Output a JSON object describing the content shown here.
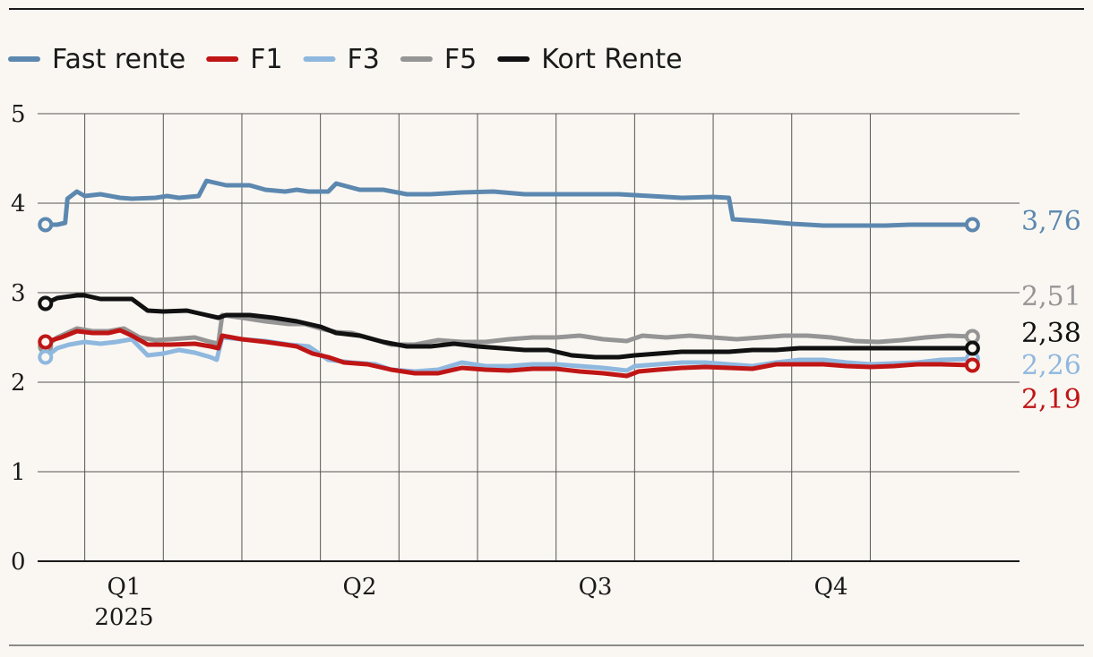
{
  "colors": {
    "background": "#faf7f2",
    "grid": "#555555",
    "axis": "#1a1a1a",
    "fast_rente": "#5c88b0",
    "f1": "#c01515",
    "f3": "#8fb8df",
    "f5": "#959595",
    "kort_rente": "#111111"
  },
  "chart_data": {
    "type": "line",
    "x_unit": "months of 2025",
    "xlim": [
      -0.6,
      11.9
    ],
    "ylim": [
      0,
      5
    ],
    "yticks": [
      "0",
      "1",
      "2",
      "3",
      "4",
      "5"
    ],
    "xticks": [
      {
        "at": 0,
        "label": "Q1",
        "sublabel": "2025"
      },
      {
        "at": 3,
        "label": "Q2",
        "sublabel": ""
      },
      {
        "at": 6,
        "label": "Q3",
        "sublabel": ""
      },
      {
        "at": 9,
        "label": "Q4",
        "sublabel": ""
      }
    ],
    "grid_x": [
      0,
      1,
      2,
      3,
      4,
      5,
      6,
      7,
      8,
      9,
      10
    ],
    "grid": true,
    "legend_position": "top-left",
    "series": [
      {
        "name": "Fast rente",
        "color_key": "fast_rente",
        "end_label": "3,76",
        "points": [
          [
            -0.5,
            3.76
          ],
          [
            -0.35,
            3.76
          ],
          [
            -0.25,
            3.78
          ],
          [
            -0.22,
            4.05
          ],
          [
            -0.1,
            4.13
          ],
          [
            0,
            4.08
          ],
          [
            0.2,
            4.1
          ],
          [
            0.45,
            4.06
          ],
          [
            0.6,
            4.05
          ],
          [
            0.9,
            4.06
          ],
          [
            1.05,
            4.08
          ],
          [
            1.2,
            4.06
          ],
          [
            1.45,
            4.08
          ],
          [
            1.55,
            4.25
          ],
          [
            1.8,
            4.2
          ],
          [
            2.1,
            4.2
          ],
          [
            2.3,
            4.15
          ],
          [
            2.55,
            4.13
          ],
          [
            2.7,
            4.15
          ],
          [
            2.85,
            4.13
          ],
          [
            3.1,
            4.13
          ],
          [
            3.2,
            4.22
          ],
          [
            3.5,
            4.15
          ],
          [
            3.8,
            4.15
          ],
          [
            4.1,
            4.1
          ],
          [
            4.4,
            4.1
          ],
          [
            4.8,
            4.12
          ],
          [
            5.2,
            4.13
          ],
          [
            5.6,
            4.1
          ],
          [
            6,
            4.1
          ],
          [
            6.4,
            4.1
          ],
          [
            6.8,
            4.1
          ],
          [
            7.2,
            4.08
          ],
          [
            7.6,
            4.06
          ],
          [
            8,
            4.07
          ],
          [
            8.2,
            4.06
          ],
          [
            8.25,
            3.82
          ],
          [
            8.6,
            3.8
          ],
          [
            9,
            3.77
          ],
          [
            9.4,
            3.75
          ],
          [
            9.8,
            3.75
          ],
          [
            10.2,
            3.75
          ],
          [
            10.5,
            3.76
          ],
          [
            11.3,
            3.76
          ]
        ]
      },
      {
        "name": "F1",
        "color_key": "f1",
        "end_label": "2,19",
        "points": [
          [
            -0.5,
            2.45
          ],
          [
            -0.3,
            2.5
          ],
          [
            -0.1,
            2.57
          ],
          [
            0.1,
            2.55
          ],
          [
            0.3,
            2.55
          ],
          [
            0.45,
            2.58
          ],
          [
            0.6,
            2.52
          ],
          [
            0.8,
            2.42
          ],
          [
            1.1,
            2.42
          ],
          [
            1.4,
            2.43
          ],
          [
            1.6,
            2.4
          ],
          [
            1.7,
            2.38
          ],
          [
            1.75,
            2.52
          ],
          [
            2.0,
            2.48
          ],
          [
            2.3,
            2.45
          ],
          [
            2.55,
            2.42
          ],
          [
            2.7,
            2.4
          ],
          [
            2.9,
            2.32
          ],
          [
            3.1,
            2.28
          ],
          [
            3.3,
            2.22
          ],
          [
            3.6,
            2.2
          ],
          [
            3.9,
            2.14
          ],
          [
            4.2,
            2.1
          ],
          [
            4.5,
            2.1
          ],
          [
            4.8,
            2.16
          ],
          [
            5.1,
            2.14
          ],
          [
            5.4,
            2.13
          ],
          [
            5.7,
            2.15
          ],
          [
            6.0,
            2.15
          ],
          [
            6.3,
            2.12
          ],
          [
            6.6,
            2.1
          ],
          [
            6.9,
            2.07
          ],
          [
            7.05,
            2.12
          ],
          [
            7.3,
            2.14
          ],
          [
            7.6,
            2.16
          ],
          [
            7.9,
            2.17
          ],
          [
            8.2,
            2.16
          ],
          [
            8.5,
            2.15
          ],
          [
            8.8,
            2.2
          ],
          [
            9.1,
            2.2
          ],
          [
            9.4,
            2.2
          ],
          [
            9.7,
            2.18
          ],
          [
            10.0,
            2.17
          ],
          [
            10.3,
            2.18
          ],
          [
            10.6,
            2.2
          ],
          [
            10.9,
            2.2
          ],
          [
            11.3,
            2.19
          ]
        ]
      },
      {
        "name": "F3",
        "color_key": "f3",
        "end_label": "2,26",
        "points": [
          [
            -0.5,
            2.28
          ],
          [
            -0.35,
            2.38
          ],
          [
            -0.2,
            2.42
          ],
          [
            0,
            2.45
          ],
          [
            0.2,
            2.43
          ],
          [
            0.4,
            2.45
          ],
          [
            0.6,
            2.48
          ],
          [
            0.8,
            2.3
          ],
          [
            1.0,
            2.32
          ],
          [
            1.2,
            2.36
          ],
          [
            1.4,
            2.33
          ],
          [
            1.6,
            2.28
          ],
          [
            1.68,
            2.25
          ],
          [
            1.75,
            2.5
          ],
          [
            2.0,
            2.48
          ],
          [
            2.3,
            2.46
          ],
          [
            2.6,
            2.42
          ],
          [
            2.85,
            2.4
          ],
          [
            3.1,
            2.25
          ],
          [
            3.4,
            2.22
          ],
          [
            3.7,
            2.2
          ],
          [
            3.9,
            2.14
          ],
          [
            4.2,
            2.12
          ],
          [
            4.5,
            2.14
          ],
          [
            4.8,
            2.22
          ],
          [
            5.1,
            2.18
          ],
          [
            5.4,
            2.18
          ],
          [
            5.7,
            2.2
          ],
          [
            6.0,
            2.2
          ],
          [
            6.3,
            2.18
          ],
          [
            6.6,
            2.16
          ],
          [
            6.9,
            2.13
          ],
          [
            7.0,
            2.18
          ],
          [
            7.3,
            2.2
          ],
          [
            7.6,
            2.22
          ],
          [
            7.9,
            2.22
          ],
          [
            8.2,
            2.2
          ],
          [
            8.5,
            2.18
          ],
          [
            8.8,
            2.22
          ],
          [
            9.1,
            2.25
          ],
          [
            9.4,
            2.25
          ],
          [
            9.7,
            2.22
          ],
          [
            10.0,
            2.2
          ],
          [
            10.3,
            2.21
          ],
          [
            10.6,
            2.22
          ],
          [
            10.9,
            2.25
          ],
          [
            11.3,
            2.26
          ]
        ]
      },
      {
        "name": "F5",
        "color_key": "f5",
        "end_label": "2,51",
        "points": [
          [
            -0.5,
            2.4
          ],
          [
            -0.35,
            2.5
          ],
          [
            -0.1,
            2.6
          ],
          [
            0.1,
            2.57
          ],
          [
            0.3,
            2.57
          ],
          [
            0.5,
            2.6
          ],
          [
            0.7,
            2.5
          ],
          [
            0.9,
            2.47
          ],
          [
            1.1,
            2.48
          ],
          [
            1.4,
            2.5
          ],
          [
            1.6,
            2.45
          ],
          [
            1.7,
            2.43
          ],
          [
            1.75,
            2.75
          ],
          [
            2.0,
            2.72
          ],
          [
            2.3,
            2.68
          ],
          [
            2.6,
            2.65
          ],
          [
            2.8,
            2.65
          ],
          [
            3.0,
            2.6
          ],
          [
            3.2,
            2.56
          ],
          [
            3.4,
            2.55
          ],
          [
            3.6,
            2.5
          ],
          [
            3.9,
            2.42
          ],
          [
            4.2,
            2.42
          ],
          [
            4.5,
            2.47
          ],
          [
            4.8,
            2.45
          ],
          [
            5.1,
            2.45
          ],
          [
            5.4,
            2.48
          ],
          [
            5.7,
            2.5
          ],
          [
            6.0,
            2.5
          ],
          [
            6.3,
            2.52
          ],
          [
            6.6,
            2.48
          ],
          [
            6.9,
            2.46
          ],
          [
            7.1,
            2.52
          ],
          [
            7.4,
            2.5
          ],
          [
            7.7,
            2.52
          ],
          [
            8.0,
            2.5
          ],
          [
            8.3,
            2.48
          ],
          [
            8.6,
            2.5
          ],
          [
            8.9,
            2.52
          ],
          [
            9.2,
            2.52
          ],
          [
            9.5,
            2.5
          ],
          [
            9.8,
            2.46
          ],
          [
            10.1,
            2.45
          ],
          [
            10.4,
            2.47
          ],
          [
            10.7,
            2.5
          ],
          [
            11.0,
            2.52
          ],
          [
            11.3,
            2.51
          ]
        ]
      },
      {
        "name": "Kort Rente",
        "color_key": "kort_rente",
        "end_label": "2,38",
        "points": [
          [
            -0.5,
            2.88
          ],
          [
            -0.35,
            2.94
          ],
          [
            -0.1,
            2.97
          ],
          [
            0,
            2.97
          ],
          [
            0.2,
            2.93
          ],
          [
            0.6,
            2.93
          ],
          [
            0.8,
            2.8
          ],
          [
            1.0,
            2.79
          ],
          [
            1.3,
            2.8
          ],
          [
            1.5,
            2.76
          ],
          [
            1.7,
            2.72
          ],
          [
            1.8,
            2.75
          ],
          [
            2.1,
            2.75
          ],
          [
            2.4,
            2.72
          ],
          [
            2.7,
            2.68
          ],
          [
            3.0,
            2.62
          ],
          [
            3.2,
            2.55
          ],
          [
            3.5,
            2.52
          ],
          [
            3.8,
            2.45
          ],
          [
            4.1,
            2.4
          ],
          [
            4.4,
            2.4
          ],
          [
            4.7,
            2.43
          ],
          [
            5.0,
            2.4
          ],
          [
            5.3,
            2.38
          ],
          [
            5.6,
            2.36
          ],
          [
            5.9,
            2.36
          ],
          [
            6.2,
            2.3
          ],
          [
            6.5,
            2.28
          ],
          [
            6.8,
            2.28
          ],
          [
            7.0,
            2.3
          ],
          [
            7.3,
            2.32
          ],
          [
            7.6,
            2.34
          ],
          [
            7.9,
            2.34
          ],
          [
            8.2,
            2.34
          ],
          [
            8.5,
            2.36
          ],
          [
            8.8,
            2.36
          ],
          [
            9.1,
            2.38
          ],
          [
            9.4,
            2.38
          ],
          [
            9.7,
            2.38
          ],
          [
            10.0,
            2.38
          ],
          [
            10.3,
            2.38
          ],
          [
            10.6,
            2.38
          ],
          [
            10.9,
            2.38
          ],
          [
            11.3,
            2.38
          ]
        ]
      }
    ]
  }
}
